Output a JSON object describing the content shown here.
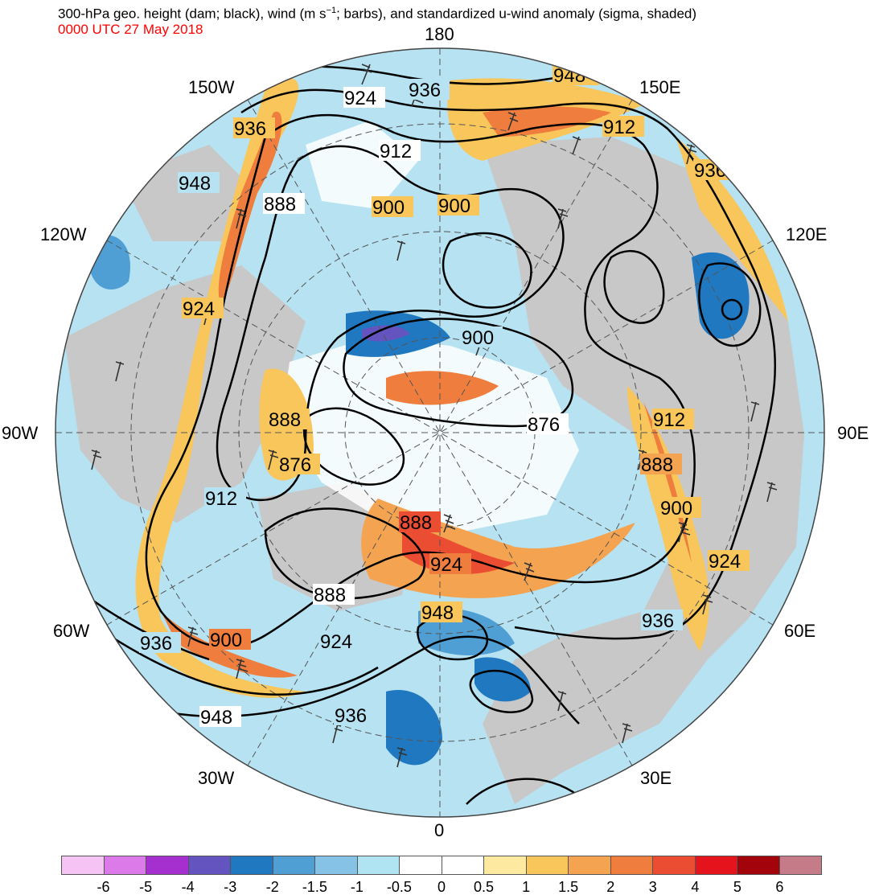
{
  "title": {
    "prefix": "300-hPa geo. height (dam; black), wind (m s",
    "exponent": "−1",
    "suffix": "; barbs), and standardized u-wind anomaly (sigma, shaded)"
  },
  "timestamp": "0000 UTC 27 May 2018",
  "longitude_labels": {
    "n180": "180",
    "w150": "150W",
    "e150": "150E",
    "w120": "120W",
    "e120": "120E",
    "w90": "90W",
    "e90": "90E",
    "w60": "60W",
    "e60": "60E",
    "w30": "30W",
    "e30": "30E",
    "s0": "0"
  },
  "contour_labels": [
    "948",
    "936",
    "924",
    "912",
    "900",
    "888",
    "876"
  ],
  "colorbar": {
    "colors": [
      "#f5c4f5",
      "#dc7aea",
      "#a52fcf",
      "#6454c0",
      "#2078c0",
      "#4f9fd4",
      "#86c2e6",
      "#b0e4f3",
      "#ffffff",
      "#ffffff",
      "#fde9a0",
      "#f8c65a",
      "#f4a350",
      "#ef7d3d",
      "#eb4d32",
      "#e5141c",
      "#a3030b",
      "#c67b88"
    ],
    "ticks": [
      "-6",
      "-5",
      "-4",
      "-3",
      "-2",
      "-1.5",
      "-1",
      "-0.5",
      "0",
      "0.5",
      "1",
      "1.5",
      "2",
      "3",
      "4",
      "5",
      "6"
    ]
  }
}
